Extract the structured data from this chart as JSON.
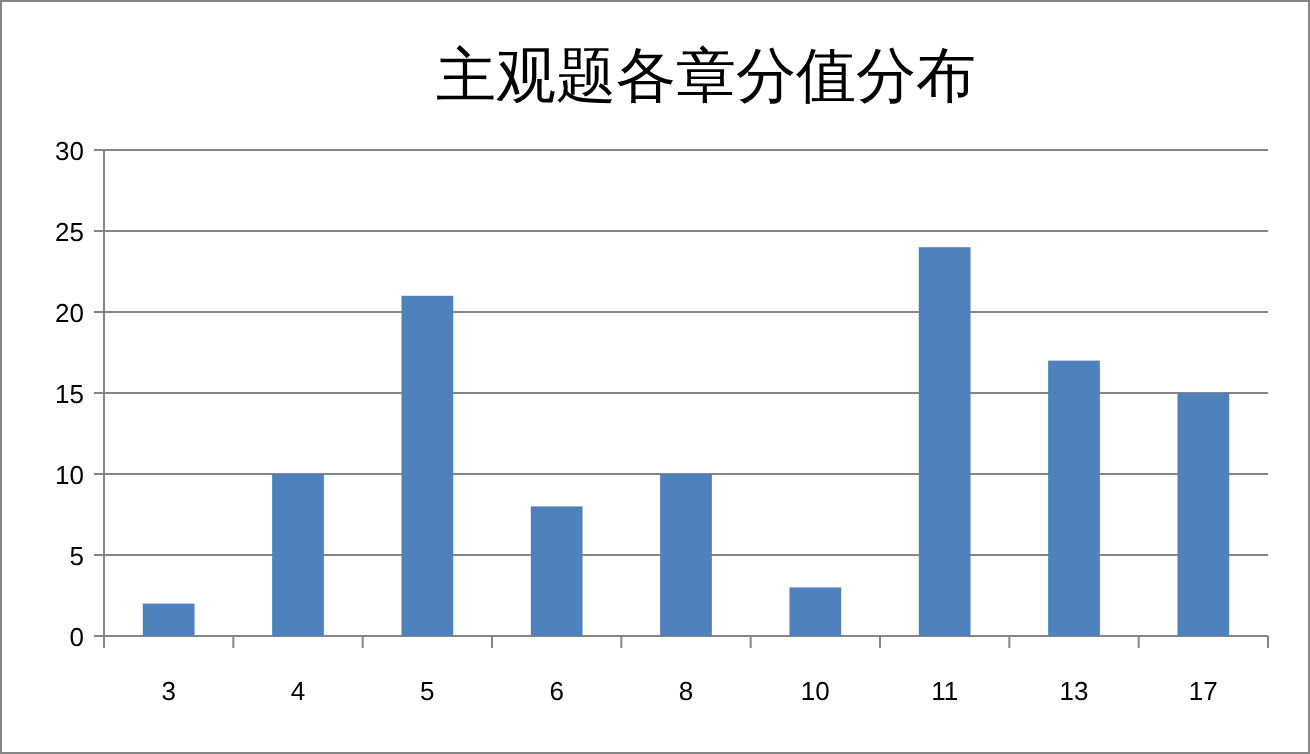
{
  "chart_data": {
    "type": "bar",
    "title": "主观题各章分值分布",
    "categories": [
      "3",
      "4",
      "5",
      "6",
      "8",
      "10",
      "11",
      "13",
      "17"
    ],
    "values": [
      2,
      10,
      21,
      8,
      10,
      3,
      24,
      17,
      15
    ],
    "color": "#4f81bd",
    "ylim": [
      0,
      30
    ],
    "yticks": [
      0,
      5,
      10,
      15,
      20,
      25,
      30
    ],
    "grid": "y"
  }
}
